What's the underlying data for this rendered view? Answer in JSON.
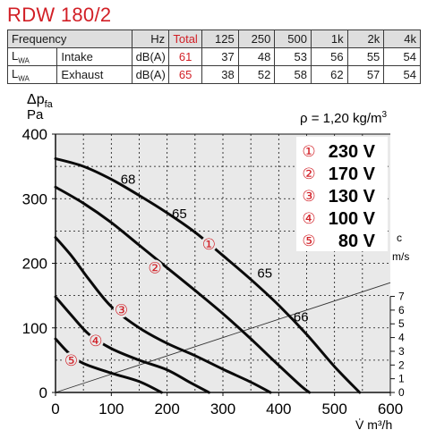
{
  "title": "RDW 180/2",
  "table": {
    "headers": [
      "Frequency",
      "Hz",
      "Total",
      "125",
      "250",
      "500",
      "1k",
      "2k",
      "4k"
    ],
    "rows": [
      {
        "label": "L",
        "sub": "WA",
        "name": "Intake",
        "unit": "dB(A)",
        "total": "61",
        "values": [
          "37",
          "48",
          "53",
          "56",
          "55",
          "54"
        ]
      },
      {
        "label": "L",
        "sub": "WA",
        "name": "Exhaust",
        "unit": "dB(A)",
        "total": "65",
        "values": [
          "38",
          "52",
          "58",
          "62",
          "57",
          "54"
        ]
      }
    ]
  },
  "colors": {
    "accent": "#d21f26",
    "plot_bg": "#e9e9e9",
    "header_bg": "#dedede"
  },
  "chart_data": {
    "type": "line",
    "ylabel_delta": "Δp",
    "ylabel_sub": "fa",
    "ylabel_unit": "Pa",
    "xlabel": "V̇ m³/h",
    "density": "ρ = 1,20 kg/m",
    "density_sup": "3",
    "xlim": [
      0,
      600
    ],
    "ylim": [
      0,
      400
    ],
    "x_ticks": [
      "0",
      "100",
      "200",
      "300",
      "400",
      "500",
      "600"
    ],
    "y_ticks": [
      "0",
      "100",
      "200",
      "300",
      "400"
    ],
    "velocity_axis": {
      "label_c": "c",
      "label_unit": "m/s",
      "ticks": [
        "0",
        "1",
        "2",
        "3",
        "4",
        "5",
        "6",
        "7"
      ]
    },
    "velocity_line": [
      [
        0,
        0
      ],
      [
        600,
        170
      ]
    ],
    "legend": [
      {
        "marker": "①",
        "label": "230 V"
      },
      {
        "marker": "②",
        "label": "170 V"
      },
      {
        "marker": "③",
        "label": "130 V"
      },
      {
        "marker": "④",
        "label": "100 V"
      },
      {
        "marker": "⑤",
        "label": "80 V"
      }
    ],
    "series": [
      {
        "marker": "①",
        "points": [
          [
            0,
            362
          ],
          [
            50,
            350
          ],
          [
            100,
            330
          ],
          [
            150,
            305
          ],
          [
            200,
            278
          ],
          [
            250,
            248
          ],
          [
            300,
            212
          ],
          [
            350,
            175
          ],
          [
            400,
            135
          ],
          [
            450,
            90
          ],
          [
            500,
            40
          ],
          [
            545,
            0
          ]
        ],
        "marker_at": [
          275,
          230
        ]
      },
      {
        "marker": "②",
        "points": [
          [
            0,
            318
          ],
          [
            50,
            293
          ],
          [
            100,
            263
          ],
          [
            150,
            228
          ],
          [
            200,
            193
          ],
          [
            250,
            158
          ],
          [
            300,
            122
          ],
          [
            350,
            83
          ],
          [
            400,
            42
          ],
          [
            440,
            10
          ],
          [
            455,
            0
          ]
        ],
        "marker_at": [
          178,
          193
        ]
      },
      {
        "marker": "③",
        "points": [
          [
            0,
            240
          ],
          [
            30,
            210
          ],
          [
            60,
            175
          ],
          [
            100,
            133
          ],
          [
            150,
            100
          ],
          [
            200,
            76
          ],
          [
            250,
            57
          ],
          [
            300,
            36
          ],
          [
            350,
            16
          ],
          [
            385,
            0
          ]
        ],
        "marker_at": [
          118,
          128
        ]
      },
      {
        "marker": "④",
        "points": [
          [
            0,
            148
          ],
          [
            30,
            118
          ],
          [
            60,
            90
          ],
          [
            100,
            68
          ],
          [
            150,
            50
          ],
          [
            200,
            35
          ],
          [
            240,
            16
          ],
          [
            275,
            0
          ]
        ],
        "marker_at": [
          72,
          80
        ]
      },
      {
        "marker": "⑤",
        "points": [
          [
            0,
            83
          ],
          [
            25,
            60
          ],
          [
            50,
            45
          ],
          [
            100,
            30
          ],
          [
            150,
            17
          ],
          [
            190,
            0
          ]
        ],
        "marker_at": [
          28,
          50
        ]
      }
    ],
    "annotations": [
      {
        "text": "68",
        "x": 130,
        "y": 323
      },
      {
        "text": "65",
        "x": 222,
        "y": 270
      },
      {
        "text": "65",
        "x": 375,
        "y": 178
      },
      {
        "text": "66",
        "x": 440,
        "y": 110
      }
    ]
  }
}
